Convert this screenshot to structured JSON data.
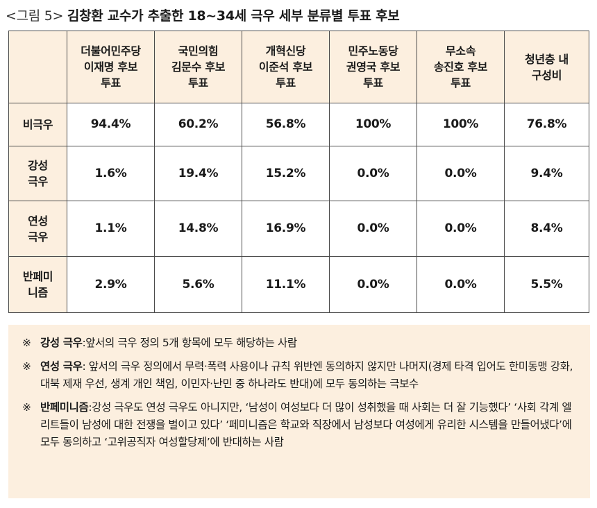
{
  "title": {
    "figure_label": "<그림 5>",
    "text": "김창환 교수가 추출한 18~34세 극우 세부 분류별 투표 후보"
  },
  "table": {
    "columns": [
      {
        "lines": [
          "더불어민주당",
          "이재명 후보",
          "투표"
        ]
      },
      {
        "lines": [
          "국민의힘",
          "김문수 후보",
          "투표"
        ]
      },
      {
        "lines": [
          "개혁신당",
          "이준석 후보",
          "투표"
        ]
      },
      {
        "lines": [
          "민주노동당",
          "권영국 후보",
          "투표"
        ]
      },
      {
        "lines": [
          "무소속",
          "송진호 후보",
          "투표"
        ]
      },
      {
        "lines": [
          "청년층 내",
          "구성비"
        ]
      }
    ],
    "rows": [
      {
        "label_lines": [
          "비극우"
        ],
        "values": [
          "94.4%",
          "60.2%",
          "56.8%",
          "100%",
          "100%",
          "76.8%"
        ]
      },
      {
        "label_lines": [
          "강성",
          "극우"
        ],
        "values": [
          "1.6%",
          "19.4%",
          "15.2%",
          "0.0%",
          "0.0%",
          "9.4%"
        ]
      },
      {
        "label_lines": [
          "연성",
          "극우"
        ],
        "values": [
          "1.1%",
          "14.8%",
          "16.9%",
          "0.0%",
          "0.0%",
          "8.4%"
        ]
      },
      {
        "label_lines": [
          "반페미",
          "니즘"
        ],
        "values": [
          "2.9%",
          "5.6%",
          "11.1%",
          "0.0%",
          "0.0%",
          "5.5%"
        ]
      }
    ]
  },
  "notes": [
    {
      "mark": "※",
      "term": "강성 극우",
      "text": ":앞서의 극우 정의 5개 항목에 모두 해당하는 사람"
    },
    {
      "mark": "※",
      "term": "연성 극우",
      "text": ": 앞서의 극우 정의에서 무력·폭력 사용이나 규칙 위반엔 동의하지 않지만 나머지(경제 타격 입어도 한미동맹 강화, 대북 제재 우선, 생계 개인 책임, 이민자·난민 중 하나라도 반대)에 모두 동의하는 극보수"
    },
    {
      "mark": "※",
      "term": "반페미니즘",
      "text": ":강성 극우도 연성 극우도 아니지만, ‘남성이 여성보다 더 많이 성취했을 때 사회는 더 잘 기능했다’ ‘사회 각계 엘리트들이 남성에 대한 전쟁을 벌이고 있다’ ‘페미니즘은 학교와 직장에서 남성보다 여성에게 유리한 시스템을 만들어냈다’에 모두 동의하고 ‘고위공직자 여성할당제’에 반대하는 사람"
    }
  ]
}
